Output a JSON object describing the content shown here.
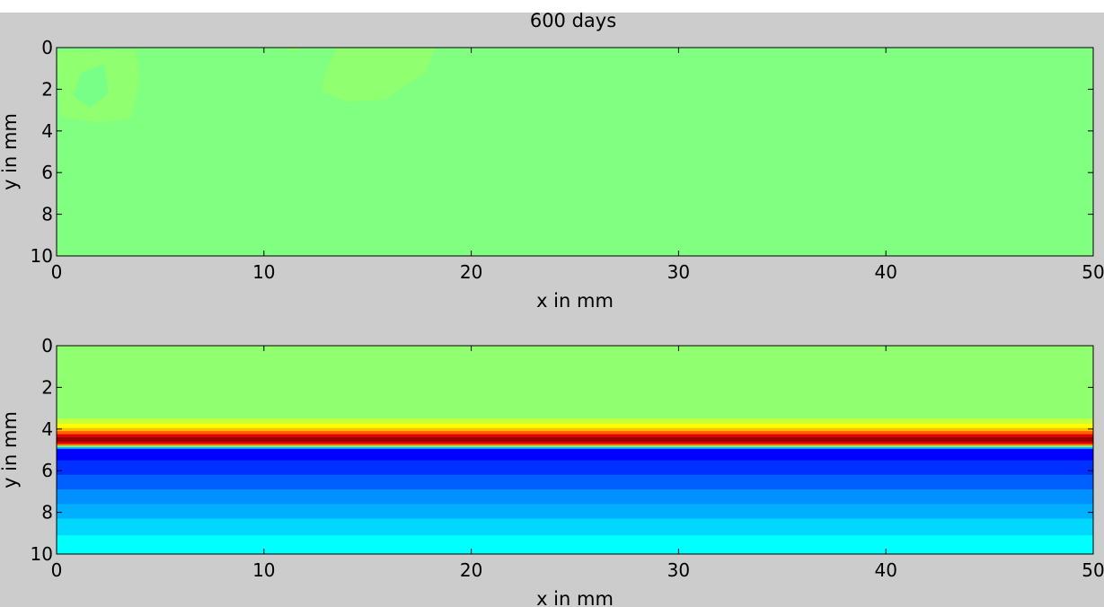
{
  "figure": {
    "title": "600 days",
    "background": "#cccccc"
  },
  "chart_data": [
    {
      "type": "heatmap",
      "title": "600 days",
      "xlabel": "x in mm",
      "ylabel": "y in mm",
      "xlim": [
        0,
        50
      ],
      "ylim": [
        0,
        10
      ],
      "y_reversed": true,
      "xticks": [
        0,
        10,
        20,
        30,
        40,
        50
      ],
      "yticks": [
        0,
        2,
        4,
        6,
        8,
        10
      ],
      "colormap": "jet",
      "base_color": "#80ff80",
      "regions": [
        {
          "name": "left patch",
          "color": "#90ff70",
          "points": [
            [
              0,
              0.2
            ],
            [
              3.8,
              0.1
            ],
            [
              4,
              1.5
            ],
            [
              3.6,
              3.4
            ],
            [
              2,
              3.6
            ],
            [
              0.2,
              3.3
            ]
          ]
        },
        {
          "name": "left patch core",
          "color": "#78ff88",
          "points": [
            [
              1.2,
              1.2
            ],
            [
              2.3,
              0.8
            ],
            [
              2.5,
              2.2
            ],
            [
              1.6,
              2.9
            ],
            [
              0.8,
              2.3
            ]
          ]
        },
        {
          "name": "middle patch",
          "color": "#90ff70",
          "points": [
            [
              13.5,
              0
            ],
            [
              18.3,
              0
            ],
            [
              17.8,
              1.2
            ],
            [
              15.8,
              2.5
            ],
            [
              14,
              2.6
            ],
            [
              12.8,
              2.1
            ],
            [
              12.9,
              1.4
            ]
          ]
        },
        {
          "name": "small notch",
          "color": "#90ff70",
          "points": [
            [
              11,
              0
            ],
            [
              11.8,
              0
            ],
            [
              11.4,
              0.2
            ]
          ]
        }
      ]
    },
    {
      "type": "heatmap",
      "title": "",
      "xlabel": "x in mm",
      "ylabel": "y in mm",
      "xlim": [
        0,
        50
      ],
      "ylim": [
        0,
        10
      ],
      "y_reversed": true,
      "xticks": [
        0,
        10,
        20,
        30,
        40,
        50
      ],
      "yticks": [
        0,
        2,
        4,
        6,
        8,
        10
      ],
      "colormap": "jet",
      "orientation": "horizontal bands, uniform along x",
      "bands": [
        {
          "y0": 0,
          "y1": 3.5,
          "color": "#90ff70"
        },
        {
          "y0": 3.5,
          "y1": 3.75,
          "color": "#c8ff38"
        },
        {
          "y0": 3.75,
          "y1": 3.95,
          "color": "#ffff00"
        },
        {
          "y0": 3.95,
          "y1": 4.1,
          "color": "#ffc000"
        },
        {
          "y0": 4.1,
          "y1": 4.25,
          "color": "#ff6000"
        },
        {
          "y0": 4.25,
          "y1": 4.4,
          "color": "#e00000"
        },
        {
          "y0": 4.4,
          "y1": 4.6,
          "color": "#900000"
        },
        {
          "y0": 4.6,
          "y1": 4.72,
          "color": "#e00000"
        },
        {
          "y0": 4.72,
          "y1": 4.8,
          "color": "#ff8000"
        },
        {
          "y0": 4.8,
          "y1": 4.88,
          "color": "#70ff90"
        },
        {
          "y0": 4.88,
          "y1": 4.96,
          "color": "#00a0ff"
        },
        {
          "y0": 4.96,
          "y1": 5.5,
          "color": "#0000ff"
        },
        {
          "y0": 5.5,
          "y1": 6.2,
          "color": "#0030ff"
        },
        {
          "y0": 6.2,
          "y1": 6.9,
          "color": "#0060ff"
        },
        {
          "y0": 6.9,
          "y1": 7.6,
          "color": "#0090ff"
        },
        {
          "y0": 7.6,
          "y1": 8.3,
          "color": "#00b0ff"
        },
        {
          "y0": 8.3,
          "y1": 9.1,
          "color": "#00d8ff"
        },
        {
          "y0": 9.1,
          "y1": 10,
          "color": "#00ffff"
        }
      ]
    }
  ]
}
